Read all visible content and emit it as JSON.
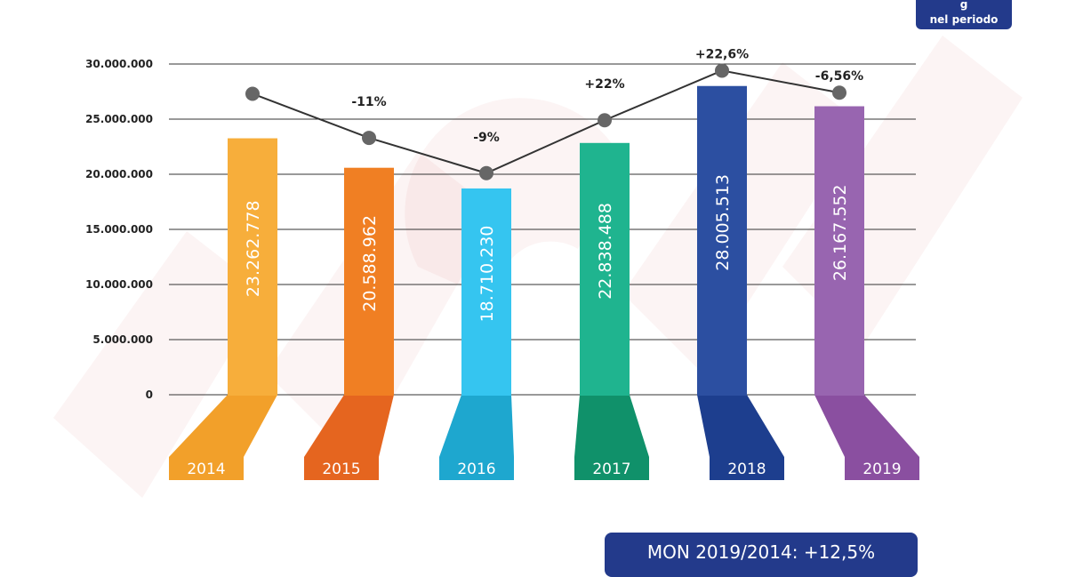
{
  "badge": {
    "line1": "g",
    "line2": "nel periodo"
  },
  "footer": {
    "text": "MON 2019/2014: +12,5%"
  },
  "colors": {
    "gridline": "#333333",
    "line": "#333333",
    "marker": "#666666",
    "watermark": "#c8202f",
    "badge": "#233a8b"
  },
  "chart_data": {
    "type": "bar",
    "categories": [
      "2014",
      "2015",
      "2016",
      "2017",
      "2018",
      "2019"
    ],
    "values": [
      23262778,
      20588962,
      18710230,
      22838488,
      28005513,
      26167552
    ],
    "value_labels": [
      "23.262.778",
      "20.588.962",
      "18.710.230",
      "22.838.488",
      "28.005.513",
      "26.167.552"
    ],
    "ylim": [
      0,
      30000000
    ],
    "yticks": [
      0,
      5000000,
      10000000,
      15000000,
      20000000,
      25000000,
      30000000
    ],
    "ytick_labels": [
      "0",
      "5.000.000",
      "10.000.000",
      "15.000.000",
      "20.000.000",
      "25.000.000",
      "30.000.000"
    ],
    "grid": true,
    "bar_colors": [
      "#f7ae3b",
      "#f07f23",
      "#35c5f0",
      "#1fb48f",
      "#2c4fa1",
      "#9865b0"
    ],
    "base_colors": [
      "#f2a02a",
      "#e5651f",
      "#1ea7cf",
      "#10916a",
      "#1d3e8e",
      "#8a4fa0"
    ],
    "trend": {
      "values": [
        27300000,
        23300000,
        20100000,
        24900000,
        29400000,
        27400000
      ],
      "labels": [
        "",
        "-11%",
        "-9%",
        "+22%",
        "+22,6%",
        "-6,56%"
      ]
    }
  }
}
